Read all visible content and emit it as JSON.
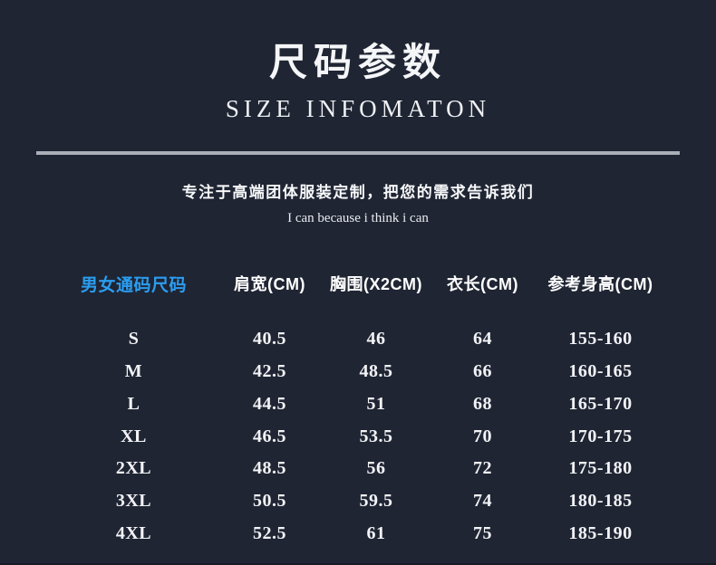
{
  "page": {
    "background_color": "#1f2533",
    "accent_blue": "#2b9df0",
    "divider_color": "#a9aeb7"
  },
  "header": {
    "title_cn": "尺码参数",
    "title_en": "SIZE INFOMATON"
  },
  "tagline": {
    "main": "专注于高端团体服装定制，把您的需求告诉我们",
    "sub": "I can because i think i can"
  },
  "size_table": {
    "columns": [
      "男女通码尺码",
      "肩宽(CM)",
      "胸围(X2CM)",
      "衣长(CM)",
      "参考身高(CM)"
    ],
    "rows": [
      {
        "size": "S",
        "shoulder": "40.5",
        "chest": "46",
        "length": "64",
        "height": "155-160"
      },
      {
        "size": "M",
        "shoulder": "42.5",
        "chest": "48.5",
        "length": "66",
        "height": "160-165"
      },
      {
        "size": "L",
        "shoulder": "44.5",
        "chest": "51",
        "length": "68",
        "height": "165-170"
      },
      {
        "size": "XL",
        "shoulder": "46.5",
        "chest": "53.5",
        "length": "70",
        "height": "170-175"
      },
      {
        "size": "2XL",
        "shoulder": "48.5",
        "chest": "56",
        "length": "72",
        "height": "175-180"
      },
      {
        "size": "3XL",
        "shoulder": "50.5",
        "chest": "59.5",
        "length": "74",
        "height": "180-185"
      },
      {
        "size": "4XL",
        "shoulder": "52.5",
        "chest": "61",
        "length": "75",
        "height": "185-190"
      }
    ]
  },
  "chart_data": {
    "type": "table",
    "title": "尺码参数 / SIZE INFOMATON",
    "columns": [
      "男女通码尺码",
      "肩宽(CM)",
      "胸围(X2CM)",
      "衣长(CM)",
      "参考身高(CM)"
    ],
    "rows": [
      [
        "S",
        40.5,
        46,
        64,
        "155-160"
      ],
      [
        "M",
        42.5,
        48.5,
        66,
        "160-165"
      ],
      [
        "L",
        44.5,
        51,
        68,
        "165-170"
      ],
      [
        "XL",
        46.5,
        53.5,
        70,
        "170-175"
      ],
      [
        "2XL",
        48.5,
        56,
        72,
        "175-180"
      ],
      [
        "3XL",
        50.5,
        59.5,
        74,
        "180-185"
      ],
      [
        "4XL",
        52.5,
        61,
        75,
        "185-190"
      ]
    ]
  }
}
